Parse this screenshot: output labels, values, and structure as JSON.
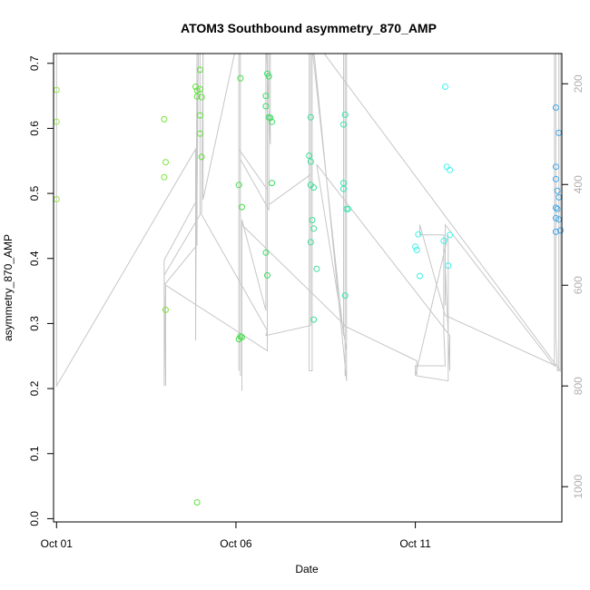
{
  "chart_data": {
    "type": "scatter",
    "title": "ATOM3 Southbound asymmetry_870_AMP",
    "xlabel": "Date",
    "ylabel": "asymmetry_870_AMP",
    "x_axis": {
      "type": "date",
      "range": [
        "2016-09-30T22:00",
        "2016-10-15T02:00"
      ],
      "ticks": [
        {
          "value": "2016-10-01",
          "label": "Oct 01"
        },
        {
          "value": "2016-10-06",
          "label": "Oct 06"
        },
        {
          "value": "2016-10-11",
          "label": "Oct 11"
        }
      ]
    },
    "y_axis": {
      "range": [
        -0.005,
        0.715
      ],
      "ticks": [
        {
          "value": 0.0,
          "label": "0.0"
        },
        {
          "value": 0.1,
          "label": "0.1"
        },
        {
          "value": 0.2,
          "label": "0.2"
        },
        {
          "value": 0.3,
          "label": "0.3"
        },
        {
          "value": 0.4,
          "label": "0.4"
        },
        {
          "value": 0.5,
          "label": "0.5"
        },
        {
          "value": 0.6,
          "label": "0.6"
        },
        {
          "value": 0.7,
          "label": "0.7"
        }
      ]
    },
    "y2_axis": {
      "reversed": true,
      "range": [
        140,
        1070
      ],
      "color": "#b0b0b0",
      "ticks": [
        {
          "value": 200,
          "label": "200"
        },
        {
          "value": 400,
          "label": "400"
        },
        {
          "value": 600,
          "label": "600"
        },
        {
          "value": 800,
          "label": "800"
        },
        {
          "value": 1000,
          "label": "1000"
        }
      ]
    },
    "grid": false,
    "series": [
      {
        "type": "points",
        "points": [
          {
            "x": "2016-10-01T00:00",
            "y": 0.659,
            "color": "#9be84b"
          },
          {
            "x": "2016-10-01T00:00",
            "y": 0.61,
            "color": "#9be84b"
          },
          {
            "x": "2016-10-01T00:00",
            "y": 0.491,
            "color": "#9be84b"
          },
          {
            "x": "2016-10-04T00:00",
            "y": 0.614,
            "color": "#79e33a"
          },
          {
            "x": "2016-10-04T01:00",
            "y": 0.548,
            "color": "#79e33a"
          },
          {
            "x": "2016-10-04T00:00",
            "y": 0.525,
            "color": "#79e33a"
          },
          {
            "x": "2016-10-04T01:00",
            "y": 0.321,
            "color": "#79e33a"
          },
          {
            "x": "2016-10-04T21:00",
            "y": 0.664,
            "color": "#5ee03a"
          },
          {
            "x": "2016-10-04T22:00",
            "y": 0.658,
            "color": "#5ee03a"
          },
          {
            "x": "2016-10-05T00:00",
            "y": 0.66,
            "color": "#5ee03a"
          },
          {
            "x": "2016-10-05T00:00",
            "y": 0.69,
            "color": "#5ee03a"
          },
          {
            "x": "2016-10-04T22:00",
            "y": 0.649,
            "color": "#5ee03a"
          },
          {
            "x": "2016-10-05T01:00",
            "y": 0.648,
            "color": "#5ee03a"
          },
          {
            "x": "2016-10-05T00:00",
            "y": 0.62,
            "color": "#5ee03a"
          },
          {
            "x": "2016-10-05T00:00",
            "y": 0.592,
            "color": "#5ee03a"
          },
          {
            "x": "2016-10-05T01:00",
            "y": 0.556,
            "color": "#5ee03a"
          },
          {
            "x": "2016-10-04T22:00",
            "y": 0.025,
            "color": "#5ee03a"
          },
          {
            "x": "2016-10-06T03:00",
            "y": 0.677,
            "color": "#45de4a"
          },
          {
            "x": "2016-10-06T02:00",
            "y": 0.513,
            "color": "#45de4a"
          },
          {
            "x": "2016-10-06T04:00",
            "y": 0.479,
            "color": "#45de4a"
          },
          {
            "x": "2016-10-06T03:00",
            "y": 0.28,
            "color": "#45de4a"
          },
          {
            "x": "2016-10-06T04:00",
            "y": 0.279,
            "color": "#45de4a"
          },
          {
            "x": "2016-10-06T02:00",
            "y": 0.276,
            "color": "#45de4a"
          },
          {
            "x": "2016-10-06T21:00",
            "y": 0.684,
            "color": "#3ddc63"
          },
          {
            "x": "2016-10-06T22:00",
            "y": 0.68,
            "color": "#3ddc63"
          },
          {
            "x": "2016-10-06T20:00",
            "y": 0.65,
            "color": "#3ddc63"
          },
          {
            "x": "2016-10-06T20:00",
            "y": 0.634,
            "color": "#3ddc63"
          },
          {
            "x": "2016-10-06T22:00",
            "y": 0.617,
            "color": "#3ddc63"
          },
          {
            "x": "2016-10-06T23:00",
            "y": 0.616,
            "color": "#3ddc63"
          },
          {
            "x": "2016-10-07T00:00",
            "y": 0.61,
            "color": "#3ddc63"
          },
          {
            "x": "2016-10-07T00:00",
            "y": 0.516,
            "color": "#3ddc63"
          },
          {
            "x": "2016-10-06T20:00",
            "y": 0.409,
            "color": "#3ddc63"
          },
          {
            "x": "2016-10-06T21:00",
            "y": 0.374,
            "color": "#3ddc63"
          },
          {
            "x": "2016-10-08T02:00",
            "y": 0.617,
            "color": "#3bdf94"
          },
          {
            "x": "2016-10-08T01:00",
            "y": 0.558,
            "color": "#3bdf94"
          },
          {
            "x": "2016-10-08T02:00",
            "y": 0.549,
            "color": "#3bdf94"
          },
          {
            "x": "2016-10-08T02:00",
            "y": 0.513,
            "color": "#3bdf94"
          },
          {
            "x": "2016-10-08T04:00",
            "y": 0.509,
            "color": "#3bdf94"
          },
          {
            "x": "2016-10-08T03:00",
            "y": 0.459,
            "color": "#3bdf94"
          },
          {
            "x": "2016-10-08T04:00",
            "y": 0.446,
            "color": "#3bdf94"
          },
          {
            "x": "2016-10-08T02:00",
            "y": 0.425,
            "color": "#3bdf94"
          },
          {
            "x": "2016-10-08T06:00",
            "y": 0.384,
            "color": "#3bdf94"
          },
          {
            "x": "2016-10-08T04:00",
            "y": 0.306,
            "color": "#3bdf94"
          },
          {
            "x": "2016-10-09T01:00",
            "y": 0.621,
            "color": "#3be2b0"
          },
          {
            "x": "2016-10-09T00:00",
            "y": 0.606,
            "color": "#3be2b0"
          },
          {
            "x": "2016-10-09T00:00",
            "y": 0.516,
            "color": "#3be2b0"
          },
          {
            "x": "2016-10-09T00:00",
            "y": 0.507,
            "color": "#3be2b0"
          },
          {
            "x": "2016-10-09T02:00",
            "y": 0.476,
            "color": "#3be2b0"
          },
          {
            "x": "2016-10-09T03:00",
            "y": 0.476,
            "color": "#3be2b0"
          },
          {
            "x": "2016-10-09T01:00",
            "y": 0.343,
            "color": "#3be2b0"
          },
          {
            "x": "2016-10-11T02:00",
            "y": 0.437,
            "color": "#3ef0e4"
          },
          {
            "x": "2016-10-11T00:00",
            "y": 0.418,
            "color": "#3ef0e4"
          },
          {
            "x": "2016-10-11T01:00",
            "y": 0.413,
            "color": "#3ef0e4"
          },
          {
            "x": "2016-10-11T03:00",
            "y": 0.373,
            "color": "#3ef0e4"
          },
          {
            "x": "2016-10-11T20:00",
            "y": 0.664,
            "color": "#3ef4ee"
          },
          {
            "x": "2016-10-11T21:00",
            "y": 0.541,
            "color": "#3ef4ee"
          },
          {
            "x": "2016-10-11T23:00",
            "y": 0.536,
            "color": "#3ef4ee"
          },
          {
            "x": "2016-10-11T19:00",
            "y": 0.427,
            "color": "#3ef4ee"
          },
          {
            "x": "2016-10-11T23:00",
            "y": 0.436,
            "color": "#3ef4ee"
          },
          {
            "x": "2016-10-11T22:00",
            "y": 0.389,
            "color": "#3ef4ee"
          },
          {
            "x": "2016-10-14T22:00",
            "y": 0.632,
            "color": "#3ea6ea"
          },
          {
            "x": "2016-10-15T00:00",
            "y": 0.593,
            "color": "#3ea6ea"
          },
          {
            "x": "2016-10-14T22:00",
            "y": 0.541,
            "color": "#3ea6ea"
          },
          {
            "x": "2016-10-14T22:00",
            "y": 0.522,
            "color": "#3ea6ea"
          },
          {
            "x": "2016-10-14T23:00",
            "y": 0.504,
            "color": "#3ea6ea"
          },
          {
            "x": "2016-10-15T00:00",
            "y": 0.494,
            "color": "#3ea6ea"
          },
          {
            "x": "2016-10-14T22:00",
            "y": 0.478,
            "color": "#3ea6ea"
          },
          {
            "x": "2016-10-14T23:00",
            "y": 0.476,
            "color": "#3ea6ea"
          },
          {
            "x": "2016-10-14T22:00",
            "y": 0.462,
            "color": "#3ea6ea"
          },
          {
            "x": "2016-10-15T00:00",
            "y": 0.46,
            "color": "#3ea6ea"
          },
          {
            "x": "2016-10-15T01:00",
            "y": 0.443,
            "color": "#3ea6ea"
          },
          {
            "x": "2016-10-14T22:00",
            "y": 0.441,
            "color": "#3ea6ea"
          }
        ]
      },
      {
        "type": "line",
        "axis": "y2",
        "color": "#c6c6c6",
        "points": [
          [
            "2016-10-01T00:00",
            100
          ],
          [
            "2016-10-01T00:00",
            800
          ],
          [
            "2016-10-04T21:00",
            330
          ],
          [
            "2016-10-04T21:00",
            710
          ],
          [
            "2016-10-04T22:00",
            100
          ],
          [
            "2016-10-04T22:00",
            520
          ],
          [
            "2016-10-04T00:00",
            600
          ],
          [
            "2016-10-04T00:00",
            800
          ],
          [
            "2016-10-04T00:00",
            550
          ],
          [
            "2016-10-04T22:00",
            430
          ],
          [
            "2016-10-04T23:00",
            100
          ],
          [
            "2016-10-05T00:00",
            100
          ],
          [
            "2016-10-05T00:00",
            460
          ],
          [
            "2016-10-04T00:00",
            580
          ],
          [
            "2016-10-04T01:00",
            800
          ],
          [
            "2016-10-04T01:00",
            600
          ],
          [
            "2016-10-06T21:00",
            730
          ],
          [
            "2016-10-06T21:00",
            100
          ],
          [
            "2016-10-06T03:00",
            100
          ],
          [
            "2016-10-06T03:00",
            780
          ],
          [
            "2016-10-06T03:00",
            350
          ],
          [
            "2016-10-06T22:00",
            450
          ],
          [
            "2016-10-06T22:00",
            100
          ],
          [
            "2016-10-06T23:00",
            100
          ],
          [
            "2016-10-06T23:00",
            320
          ],
          [
            "2016-10-06T20:00",
            100
          ],
          [
            "2016-10-06T20:00",
            650
          ],
          [
            "2016-10-06T04:00",
            470
          ],
          [
            "2016-10-06T04:00",
            810
          ],
          [
            "2016-10-06T04:00",
            480
          ],
          [
            "2016-10-09T01:00",
            680
          ],
          [
            "2016-10-09T01:00",
            100
          ],
          [
            "2016-10-09T01:00",
            780
          ],
          [
            "2016-10-09T01:00",
            100
          ],
          [
            "2016-10-09T02:00",
            100
          ],
          [
            "2016-10-09T02:00",
            790
          ],
          [
            "2016-10-08T03:00",
            100
          ],
          [
            "2016-10-09T00:00",
            100
          ],
          [
            "2016-10-09T02:00",
            100
          ],
          [
            "2016-10-09T02:00",
            730
          ],
          [
            "2016-10-08T06:00",
            360
          ],
          [
            "2016-10-11T23:00",
            700
          ],
          [
            "2016-10-11T23:00",
            770
          ],
          [
            "2016-10-11T20:00",
            560
          ],
          [
            "2016-10-11T20:00",
            640
          ],
          [
            "2016-10-11T20:00",
            480
          ],
          [
            "2016-10-14T21:00",
            760
          ],
          [
            "2016-10-14T21:00",
            100
          ],
          [
            "2016-10-14T22:00",
            100
          ],
          [
            "2016-10-14T22:00",
            700
          ],
          [
            "2016-10-14T23:00",
            770
          ],
          [
            "2016-10-15T00:00",
            770
          ],
          [
            "2016-10-15T00:00",
            100
          ],
          [
            "2016-10-15T01:00",
            100
          ],
          [
            "2016-10-15T01:00",
            770
          ],
          [
            "2016-10-08T01:00",
            100
          ],
          [
            "2016-10-08T01:00",
            770
          ],
          [
            "2016-10-08T03:00",
            770
          ],
          [
            "2016-10-08T03:00",
            100
          ],
          [
            "2016-10-08T02:00",
            100
          ],
          [
            "2016-10-08T02:00",
            680
          ],
          [
            "2016-10-06T20:00",
            700
          ],
          [
            "2016-10-06T21:00",
            690
          ],
          [
            "2016-10-05T01:00",
            460
          ],
          [
            "2016-10-05T02:00",
            100
          ],
          [
            "2016-10-05T02:00",
            430
          ],
          [
            "2016-10-06T02:00",
            100
          ],
          [
            "2016-10-06T02:00",
            770
          ],
          [
            "2016-10-06T02:00",
            330
          ],
          [
            "2016-10-06T21:00",
            410
          ],
          [
            "2016-10-06T21:00",
            100
          ],
          [
            "2016-10-06T22:00",
            100
          ],
          [
            "2016-10-06T22:00",
            440
          ],
          [
            "2016-10-08T02:00",
            380
          ],
          [
            "2016-10-08T02:00",
            100
          ],
          [
            "2016-10-09T00:00",
            700
          ],
          [
            "2016-10-09T00:00",
            100
          ],
          [
            "2016-10-09T00:00",
            680
          ],
          [
            "2016-10-11T01:00",
            750
          ],
          [
            "2016-10-11T01:00",
            780
          ],
          [
            "2016-10-11T22:00",
            790
          ],
          [
            "2016-10-11T22:00",
            500
          ],
          [
            "2016-10-11T00:00",
            780
          ],
          [
            "2016-10-11T00:00",
            760
          ],
          [
            "2016-10-11T20:00",
            760
          ],
          [
            "2016-10-11T19:00",
            690
          ],
          [
            "2016-10-11T19:00",
            500
          ],
          [
            "2016-10-11T03:00",
            500
          ],
          [
            "2016-10-11T03:00",
            480
          ],
          [
            "2016-10-11T20:00",
            660
          ],
          [
            "2016-10-14T22:00",
            760
          ]
        ]
      }
    ]
  }
}
